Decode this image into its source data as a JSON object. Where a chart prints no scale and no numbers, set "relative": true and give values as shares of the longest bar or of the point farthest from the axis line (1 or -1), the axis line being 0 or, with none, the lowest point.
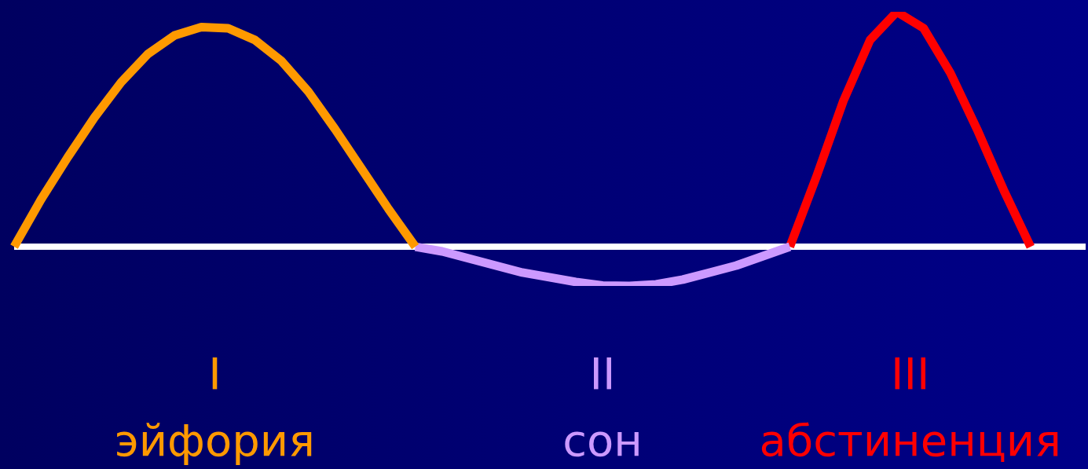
{
  "chart_data": {
    "type": "line",
    "relative": true,
    "tick_labels": false,
    "legend": false,
    "marker": "none",
    "line_style": "solid",
    "categories": [
      null,
      null,
      null,
      null,
      null,
      null,
      null,
      null,
      null,
      null,
      null,
      null,
      null,
      null,
      null,
      null,
      null,
      null,
      null,
      null,
      null,
      null,
      null,
      null,
      null,
      null,
      null,
      null,
      null,
      null,
      null,
      null,
      null,
      null,
      null,
      null,
      null,
      null,
      null,
      null,
      null
    ],
    "series": [
      {
        "name": "I\nэйфория",
        "color": "#ff9900",
        "values": [
          0,
          0.2,
          0.38,
          0.55,
          0.7,
          0.82,
          0.9,
          0.935,
          0.93,
          0.88,
          0.79,
          0.66,
          0.5,
          0.33,
          0.16,
          0,
          null,
          null,
          null,
          null,
          null,
          null,
          null,
          null,
          null,
          null,
          null,
          null,
          null,
          null,
          null,
          null,
          null,
          null,
          null,
          null,
          null,
          null,
          null,
          null,
          null
        ]
      },
      {
        "name": "II\nсон",
        "color": "#cc99ff",
        "values": [
          null,
          null,
          null,
          null,
          null,
          null,
          null,
          null,
          null,
          null,
          null,
          null,
          null,
          null,
          null,
          0,
          -0.02,
          -0.05,
          -0.08,
          -0.11,
          -0.13,
          -0.15,
          -0.165,
          -0.167,
          -0.16,
          -0.14,
          -0.11,
          -0.08,
          -0.04,
          0,
          null,
          null,
          null,
          null,
          null,
          null,
          null,
          null,
          null,
          null,
          null
        ]
      },
      {
        "name": "III\nабстиненция",
        "color": "#ff0000",
        "values": [
          null,
          null,
          null,
          null,
          null,
          null,
          null,
          null,
          null,
          null,
          null,
          null,
          null,
          null,
          null,
          null,
          null,
          null,
          null,
          null,
          null,
          null,
          null,
          null,
          null,
          null,
          null,
          null,
          null,
          0,
          0.3,
          0.62,
          0.88,
          1,
          0.93,
          0.74,
          0.5,
          0.24,
          0,
          null,
          null
        ]
      }
    ]
  }
}
